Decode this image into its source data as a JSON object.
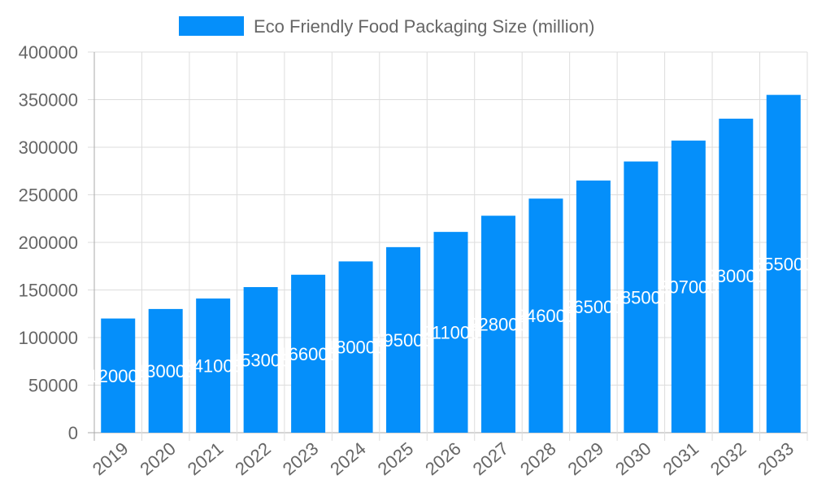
{
  "chart_data": {
    "type": "bar",
    "categories": [
      "2019",
      "2020",
      "2021",
      "2022",
      "2023",
      "2024",
      "2025",
      "2026",
      "2027",
      "2028",
      "2029",
      "2030",
      "2031",
      "2032",
      "2033"
    ],
    "series": [
      {
        "name": "Eco Friendly Food Packaging Size (million)",
        "values": [
          120000,
          130000,
          141000,
          153000,
          166000,
          180000,
          195000,
          211000,
          228000,
          246000,
          265000,
          285000,
          307000,
          330000,
          355000
        ],
        "color": "#058ffa"
      }
    ],
    "ylim": [
      0,
      400000
    ],
    "yticks": [
      "0",
      "50000",
      "100000",
      "150000",
      "200000",
      "250000",
      "300000",
      "350000",
      "400000"
    ],
    "grid": true,
    "legend": "top",
    "data_labels": true,
    "data_label_color": "#ffffff"
  }
}
